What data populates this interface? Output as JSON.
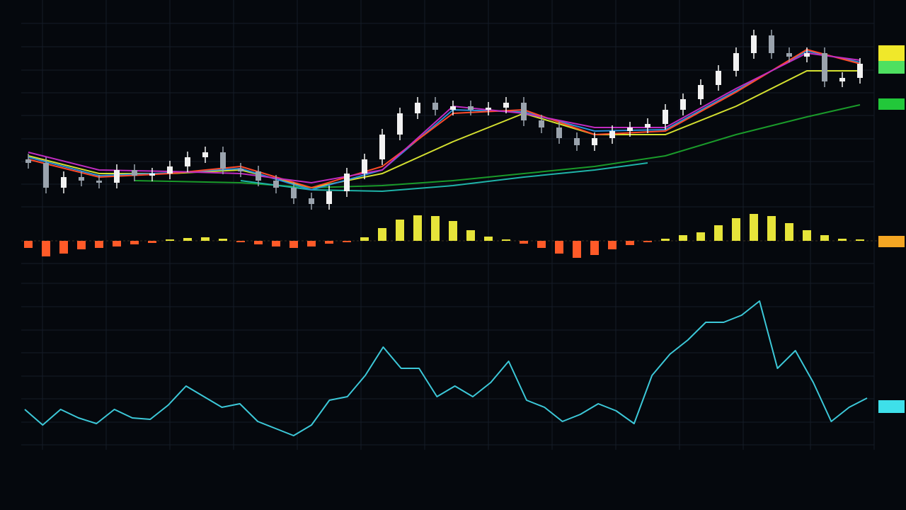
{
  "chart_data": [
    {
      "type": "candlestick",
      "open": [
        95,
        90,
        55,
        70,
        65,
        62,
        80,
        72,
        75,
        85,
        98,
        105,
        82,
        78,
        65,
        55,
        40,
        32,
        50,
        75,
        95,
        130,
        160,
        175,
        165,
        170,
        165,
        168,
        175,
        150,
        140,
        125,
        115,
        125,
        135,
        140,
        145,
        165,
        180,
        200,
        220,
        245,
        270,
        245,
        240,
        245,
        205,
        210
      ],
      "high": [
        103,
        98,
        78,
        78,
        73,
        88,
        88,
        83,
        93,
        106,
        113,
        113,
        90,
        86,
        73,
        63,
        48,
        58,
        83,
        103,
        138,
        168,
        183,
        183,
        178,
        178,
        176,
        183,
        183,
        158,
        148,
        133,
        133,
        143,
        148,
        153,
        173,
        188,
        208,
        228,
        253,
        278,
        278,
        253,
        253,
        253,
        218,
        238
      ],
      "low": [
        82,
        47,
        47,
        57,
        54,
        54,
        64,
        64,
        67,
        77,
        90,
        74,
        70,
        57,
        47,
        32,
        24,
        24,
        42,
        67,
        87,
        122,
        152,
        157,
        157,
        157,
        157,
        160,
        142,
        132,
        117,
        107,
        107,
        117,
        127,
        132,
        137,
        157,
        172,
        192,
        212,
        237,
        237,
        232,
        232,
        197,
        197,
        202
      ],
      "close": [
        90,
        55,
        70,
        65,
        62,
        80,
        72,
        75,
        85,
        98,
        105,
        82,
        78,
        65,
        55,
        40,
        32,
        50,
        75,
        95,
        130,
        160,
        175,
        165,
        170,
        165,
        168,
        175,
        150,
        140,
        125,
        115,
        125,
        135,
        140,
        145,
        165,
        180,
        200,
        220,
        245,
        270,
        245,
        240,
        245,
        205,
        210,
        230
      ],
      "up_color": "#f2f2f2",
      "down_color": "#9aa3ad",
      "ylim": [
        0,
        300
      ],
      "series": [
        {
          "color": "#1a9a2a",
          "x": [
            6,
            12,
            16,
            20,
            24,
            28,
            32,
            36,
            40,
            44,
            47
          ],
          "values": [
            65,
            62,
            55,
            58,
            65,
            75,
            85,
            100,
            130,
            155,
            172
          ]
        },
        {
          "color": "#1fb3a8",
          "x": [
            12,
            16,
            20,
            24,
            28,
            32,
            35
          ],
          "values": [
            65,
            52,
            50,
            58,
            70,
            80,
            90
          ]
        },
        {
          "color": "#d4e030",
          "x": [
            0,
            4,
            8,
            12,
            16,
            20,
            24,
            28,
            32,
            36,
            40,
            44,
            47
          ],
          "values": [
            100,
            75,
            75,
            80,
            55,
            75,
            120,
            160,
            130,
            130,
            170,
            220,
            220
          ]
        },
        {
          "color": "#2a8fd8",
          "x": [
            0,
            4,
            8,
            12,
            16,
            20,
            24,
            28,
            32,
            36,
            40,
            44,
            47
          ],
          "values": [
            98,
            72,
            76,
            82,
            52,
            80,
            165,
            162,
            135,
            137,
            192,
            248,
            232
          ]
        },
        {
          "color": "#ff4a2a",
          "x": [
            0,
            4,
            8,
            12,
            16,
            20,
            24,
            28,
            32,
            36,
            40,
            44,
            47
          ],
          "values": [
            95,
            70,
            75,
            85,
            55,
            85,
            160,
            165,
            130,
            135,
            190,
            250,
            230
          ]
        },
        {
          "color": "#c02cc0",
          "x": [
            0,
            4,
            8,
            12,
            16,
            20,
            24,
            28,
            32,
            36,
            40,
            44,
            47
          ],
          "values": [
            105,
            80,
            78,
            75,
            62,
            80,
            170,
            160,
            140,
            140,
            195,
            245,
            235
          ]
        }
      ]
    },
    {
      "type": "bar",
      "values": [
        -10,
        -22,
        -18,
        -12,
        -10,
        -8,
        -5,
        -3,
        2,
        4,
        5,
        3,
        -2,
        -5,
        -8,
        -10,
        -8,
        -4,
        -2,
        5,
        18,
        30,
        36,
        35,
        28,
        15,
        6,
        2,
        -4,
        -10,
        -18,
        -24,
        -20,
        -12,
        -6,
        -2,
        3,
        8,
        12,
        22,
        32,
        38,
        35,
        25,
        15,
        8,
        3,
        2
      ],
      "positive_color": "#e6e43a",
      "negative_color": "#ff5a28",
      "ylim": [
        -40,
        40
      ]
    },
    {
      "type": "line",
      "values": [
        52,
        30,
        52,
        40,
        32,
        52,
        40,
        38,
        58,
        85,
        70,
        55,
        60,
        35,
        25,
        15,
        30,
        65,
        70,
        100,
        140,
        110,
        110,
        70,
        85,
        70,
        90,
        120,
        65,
        55,
        35,
        45,
        60,
        50,
        32,
        100,
        130,
        150,
        175,
        175,
        185,
        205,
        110,
        135,
        90,
        35,
        55,
        68
      ],
      "color": "#3cc8d8",
      "ylim": [
        0,
        245
      ]
    }
  ]
}
